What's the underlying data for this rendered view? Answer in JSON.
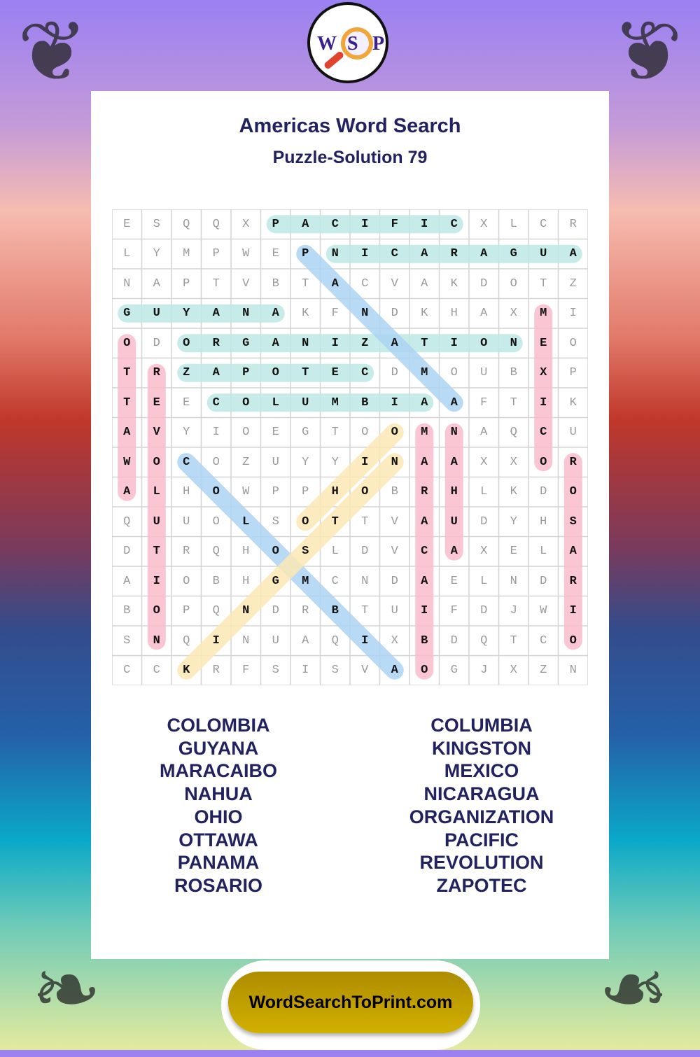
{
  "logo": {
    "letters": [
      "W",
      "S",
      "P"
    ]
  },
  "header": {
    "title": "Americas Word Search",
    "subtitle": "Puzzle-Solution 79"
  },
  "grid": [
    "ESQQXPACIFICXLCR",
    "LYMPWEPNICARAGUA",
    "NAPTVBTACVAKDOTZ",
    "GUYANAKFNDKHAXMI",
    "ODORGANIZATIONEO",
    "TRZAPOTECDMOUBXP",
    "TEECOLUMBIAAFTIK",
    "AVYIOEGTOOMNAQCU",
    "WOCOZUYYINAAXXOR",
    "ALHOWPPHOBRHLKDO",
    "QUUOLSOTTVAUDYHS",
    "DTRQHOSLDVCAXELA",
    "AIOBHGMCNDAELNDR",
    "BOPQNDRBTUIFDJWI",
    "SNQINUAQIXBDQTCO",
    "CCKRFSISVAOGJXZN"
  ],
  "highlight_colors": {
    "teal": "#bde8e5",
    "blue": "#acd4f2",
    "yellow": "#fbe8b4",
    "pink": "#f9bccb"
  },
  "solutions": [
    {
      "word": "PACIFIC",
      "start": [
        0,
        5
      ],
      "end": [
        0,
        11
      ],
      "color": "teal"
    },
    {
      "word": "NICARAGUA",
      "start": [
        1,
        7
      ],
      "end": [
        1,
        15
      ],
      "color": "teal"
    },
    {
      "word": "GUYANA",
      "start": [
        3,
        0
      ],
      "end": [
        3,
        5
      ],
      "color": "teal"
    },
    {
      "word": "ORGANIZATION",
      "start": [
        4,
        2
      ],
      "end": [
        4,
        13
      ],
      "color": "teal"
    },
    {
      "word": "ZAPOTEC",
      "start": [
        5,
        2
      ],
      "end": [
        5,
        8
      ],
      "color": "teal"
    },
    {
      "word": "COLUMBIA",
      "start": [
        6,
        3
      ],
      "end": [
        6,
        10
      ],
      "color": "teal"
    },
    {
      "word": "PANAMA",
      "start": [
        1,
        6
      ],
      "end": [
        6,
        11
      ],
      "color": "blue"
    },
    {
      "word": "COLOMBIA",
      "start": [
        8,
        2
      ],
      "end": [
        15,
        9
      ],
      "color": "blue"
    },
    {
      "word": "KINGSTON",
      "start": [
        15,
        2
      ],
      "end": [
        8,
        9
      ],
      "color": "yellow"
    },
    {
      "word": "OHIO",
      "start": [
        10,
        6
      ],
      "end": [
        7,
        9
      ],
      "color": "yellow"
    },
    {
      "word": "OTTAWA",
      "start": [
        4,
        0
      ],
      "end": [
        9,
        0
      ],
      "color": "pink"
    },
    {
      "word": "REVOLUTION",
      "start": [
        5,
        1
      ],
      "end": [
        14,
        1
      ],
      "color": "pink"
    },
    {
      "word": "MARACAIBO",
      "start": [
        7,
        10
      ],
      "end": [
        15,
        10
      ],
      "color": "pink"
    },
    {
      "word": "NAHUA",
      "start": [
        7,
        11
      ],
      "end": [
        11,
        11
      ],
      "color": "pink"
    },
    {
      "word": "MEXICO",
      "start": [
        3,
        14
      ],
      "end": [
        8,
        14
      ],
      "color": "pink"
    },
    {
      "word": "ROSARIO",
      "start": [
        8,
        15
      ],
      "end": [
        14,
        15
      ],
      "color": "pink"
    }
  ],
  "word_list": {
    "left": [
      "COLOMBIA",
      "GUYANA",
      "MARACAIBO",
      "NAHUA",
      "OHIO",
      "OTTAWA",
      "PANAMA",
      "ROSARIO"
    ],
    "right": [
      "COLUMBIA",
      "KINGSTON",
      "MEXICO",
      "NICARAGUA",
      "ORGANIZATION",
      "PACIFIC",
      "REVOLUTION",
      "ZAPOTEC"
    ]
  },
  "footer": {
    "link": "WordSearchToPrint.com"
  }
}
